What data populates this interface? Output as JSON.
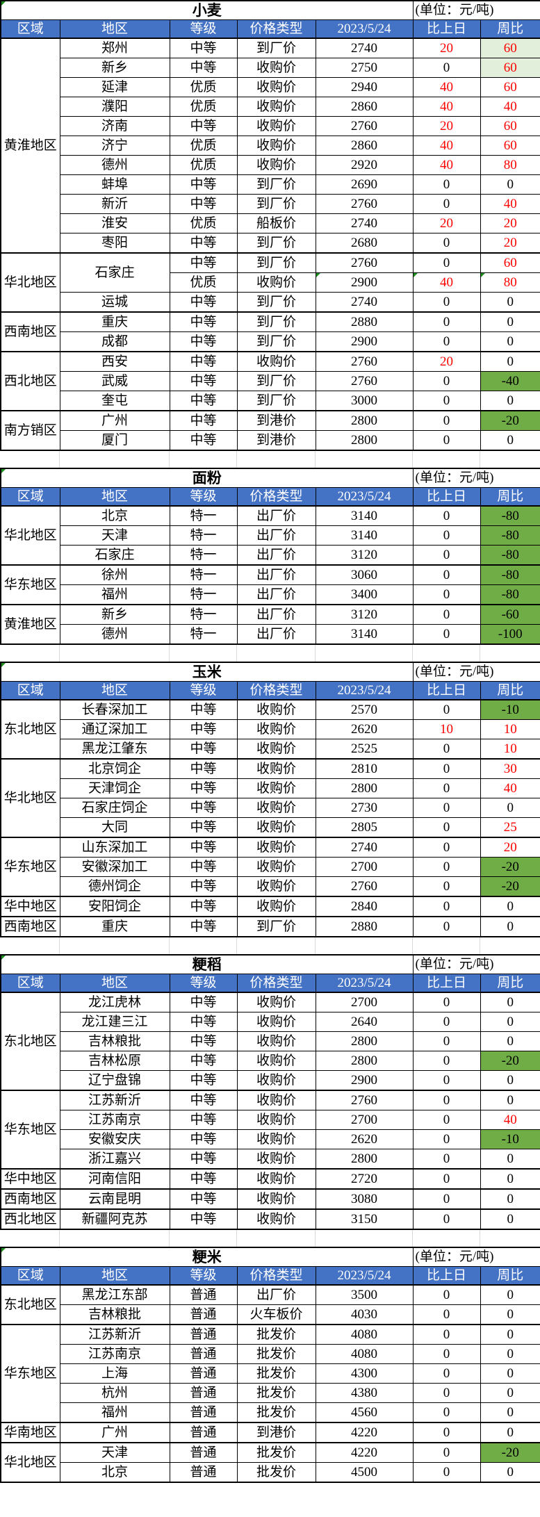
{
  "unit_label": "(单位：元/吨)",
  "columns": [
    "区域",
    "地区",
    "等级",
    "价格类型",
    "2023/5/24",
    "比上日",
    "周比"
  ],
  "colors": {
    "header_bg": "#4472C4",
    "pos_text": "#FF0000",
    "neg_bg": "#70AD47",
    "hl_bg": "#E2EFDA",
    "marker": "#1E8F1E"
  },
  "tables": [
    {
      "name": "wheat",
      "title": "小麦",
      "groups": [
        {
          "region": "黄淮地区",
          "rows": [
            {
              "area": "郑州",
              "grade": "中等",
              "ptype": "到厂价",
              "price": 2740,
              "dod": 20,
              "wow": 60,
              "hl": true
            },
            {
              "area": "新乡",
              "grade": "中等",
              "ptype": "收购价",
              "price": 2750,
              "dod": 0,
              "wow": 60,
              "hl": true
            },
            {
              "area": "延津",
              "grade": "优质",
              "ptype": "收购价",
              "price": 2940,
              "dod": 40,
              "wow": 60
            },
            {
              "area": "濮阳",
              "grade": "优质",
              "ptype": "收购价",
              "price": 2860,
              "dod": 40,
              "wow": 40
            },
            {
              "area": "济南",
              "grade": "中等",
              "ptype": "收购价",
              "price": 2760,
              "dod": 20,
              "wow": 60
            },
            {
              "area": "济宁",
              "grade": "优质",
              "ptype": "收购价",
              "price": 2860,
              "dod": 40,
              "wow": 60
            },
            {
              "area": "德州",
              "grade": "优质",
              "ptype": "收购价",
              "price": 2920,
              "dod": 40,
              "wow": 80
            },
            {
              "area": "蚌埠",
              "grade": "中等",
              "ptype": "到厂价",
              "price": 2690,
              "dod": 0,
              "wow": 0
            },
            {
              "area": "新沂",
              "grade": "中等",
              "ptype": "到厂价",
              "price": 2760,
              "dod": 0,
              "wow": 40
            },
            {
              "area": "淮安",
              "grade": "优质",
              "ptype": "船板价",
              "price": 2740,
              "dod": 20,
              "wow": 20
            },
            {
              "area": "枣阳",
              "grade": "中等",
              "ptype": "到厂价",
              "price": 2680,
              "dod": 0,
              "wow": 20
            }
          ]
        },
        {
          "region": "华北地区",
          "rows": [
            {
              "area": "石家庄",
              "area_span": 2,
              "grade": "中等",
              "ptype": "到厂价",
              "price": 2760,
              "dod": 0,
              "wow": 60
            },
            {
              "area": null,
              "grade": "优质",
              "ptype": "收购价",
              "price": 2900,
              "dod": 40,
              "wow": 80,
              "markers": true
            },
            {
              "area": "运城",
              "grade": "中等",
              "ptype": "到厂价",
              "price": 2740,
              "dod": 0,
              "wow": 0
            }
          ]
        },
        {
          "region": "西南地区",
          "rows": [
            {
              "area": "重庆",
              "grade": "中等",
              "ptype": "到厂价",
              "price": 2880,
              "dod": 0,
              "wow": 0
            },
            {
              "area": "成都",
              "grade": "中等",
              "ptype": "到厂价",
              "price": 2900,
              "dod": 0,
              "wow": 0
            }
          ]
        },
        {
          "region": "西北地区",
          "rows": [
            {
              "area": "西安",
              "grade": "中等",
              "ptype": "收购价",
              "price": 2760,
              "dod": 20,
              "wow": 0
            },
            {
              "area": "武威",
              "grade": "中等",
              "ptype": "到厂价",
              "price": 2760,
              "dod": 0,
              "wow": -40
            },
            {
              "area": "奎屯",
              "grade": "中等",
              "ptype": "到厂价",
              "price": 3000,
              "dod": 0,
              "wow": 0
            }
          ]
        },
        {
          "region": "南方销区",
          "rows": [
            {
              "area": "广州",
              "grade": "中等",
              "ptype": "到港价",
              "price": 2800,
              "dod": 0,
              "wow": -20
            },
            {
              "area": "厦门",
              "grade": "中等",
              "ptype": "到港价",
              "price": 2800,
              "dod": 0,
              "wow": 0
            }
          ]
        }
      ]
    },
    {
      "name": "flour",
      "title": "面粉",
      "groups": [
        {
          "region": "华北地区",
          "rows": [
            {
              "area": "北京",
              "grade": "特一",
              "ptype": "出厂价",
              "price": 3140,
              "dod": 0,
              "wow": -80
            },
            {
              "area": "天津",
              "grade": "特一",
              "ptype": "出厂价",
              "price": 3140,
              "dod": 0,
              "wow": -80
            },
            {
              "area": "石家庄",
              "grade": "特一",
              "ptype": "出厂价",
              "price": 3120,
              "dod": 0,
              "wow": -80
            }
          ]
        },
        {
          "region": "华东地区",
          "rows": [
            {
              "area": "徐州",
              "grade": "特一",
              "ptype": "出厂价",
              "price": 3060,
              "dod": 0,
              "wow": -80
            },
            {
              "area": "福州",
              "grade": "特一",
              "ptype": "出厂价",
              "price": 3400,
              "dod": 0,
              "wow": -80
            }
          ]
        },
        {
          "region": "黄淮地区",
          "rows": [
            {
              "area": "新乡",
              "grade": "特一",
              "ptype": "出厂价",
              "price": 3120,
              "dod": 0,
              "wow": -60
            },
            {
              "area": "德州",
              "grade": "特一",
              "ptype": "出厂价",
              "price": 3140,
              "dod": 0,
              "wow": -100
            }
          ]
        }
      ]
    },
    {
      "name": "corn",
      "title": "玉米",
      "groups": [
        {
          "region": "东北地区",
          "rows": [
            {
              "area": "长春深加工",
              "grade": "中等",
              "ptype": "收购价",
              "price": 2570,
              "dod": 0,
              "wow": -10
            },
            {
              "area": "通辽深加工",
              "grade": "中等",
              "ptype": "收购价",
              "price": 2620,
              "dod": 10,
              "wow": 10
            },
            {
              "area": "黑龙江肇东",
              "grade": "中等",
              "ptype": "收购价",
              "price": 2525,
              "dod": 0,
              "wow": 10
            }
          ]
        },
        {
          "region": "华北地区",
          "rows": [
            {
              "area": "北京饲企",
              "grade": "中等",
              "ptype": "收购价",
              "price": 2810,
              "dod": 0,
              "wow": 30
            },
            {
              "area": "天津饲企",
              "grade": "中等",
              "ptype": "收购价",
              "price": 2800,
              "dod": 0,
              "wow": 40
            },
            {
              "area": "石家庄饲企",
              "grade": "中等",
              "ptype": "收购价",
              "price": 2730,
              "dod": 0,
              "wow": 0
            },
            {
              "area": "大同",
              "grade": "中等",
              "ptype": "收购价",
              "price": 2805,
              "dod": 0,
              "wow": 25
            }
          ]
        },
        {
          "region": "华东地区",
          "rows": [
            {
              "area": "山东深加工",
              "grade": "中等",
              "ptype": "收购价",
              "price": 2740,
              "dod": 0,
              "wow": 20
            },
            {
              "area": "安徽深加工",
              "grade": "中等",
              "ptype": "收购价",
              "price": 2700,
              "dod": 0,
              "wow": -20
            },
            {
              "area": "德州饲企",
              "grade": "中等",
              "ptype": "收购价",
              "price": 2760,
              "dod": 0,
              "wow": -20
            }
          ]
        },
        {
          "region": "华中地区",
          "rows": [
            {
              "area": "安阳饲企",
              "grade": "中等",
              "ptype": "收购价",
              "price": 2840,
              "dod": 0,
              "wow": 0
            }
          ]
        },
        {
          "region": "西南地区",
          "rows": [
            {
              "area": "重庆",
              "grade": "中等",
              "ptype": "到厂价",
              "price": 2880,
              "dod": 0,
              "wow": 0
            }
          ]
        }
      ]
    },
    {
      "name": "japonica-paddy",
      "title": "粳稻",
      "groups": [
        {
          "region": "东北地区",
          "rows": [
            {
              "area": "龙江虎林",
              "grade": "中等",
              "ptype": "收购价",
              "price": 2700,
              "dod": 0,
              "wow": 0
            },
            {
              "area": "龙江建三江",
              "grade": "中等",
              "ptype": "收购价",
              "price": 2640,
              "dod": 0,
              "wow": 0
            },
            {
              "area": "吉林粮批",
              "grade": "中等",
              "ptype": "收购价",
              "price": 2800,
              "dod": 0,
              "wow": 0
            },
            {
              "area": "吉林松原",
              "grade": "中等",
              "ptype": "收购价",
              "price": 2800,
              "dod": 0,
              "wow": -20
            },
            {
              "area": "辽宁盘锦",
              "grade": "中等",
              "ptype": "收购价",
              "price": 2900,
              "dod": 0,
              "wow": 0
            }
          ]
        },
        {
          "region": "华东地区",
          "rows": [
            {
              "area": "江苏新沂",
              "grade": "中等",
              "ptype": "收购价",
              "price": 2760,
              "dod": 0,
              "wow": 0
            },
            {
              "area": "江苏南京",
              "grade": "中等",
              "ptype": "收购价",
              "price": 2700,
              "dod": 0,
              "wow": 40
            },
            {
              "area": "安徽安庆",
              "grade": "中等",
              "ptype": "收购价",
              "price": 2620,
              "dod": 0,
              "wow": -10
            },
            {
              "area": "浙江嘉兴",
              "grade": "中等",
              "ptype": "收购价",
              "price": 2800,
              "dod": 0,
              "wow": 0
            }
          ]
        },
        {
          "region": "华中地区",
          "rows": [
            {
              "area": "河南信阳",
              "grade": "中等",
              "ptype": "收购价",
              "price": 2720,
              "dod": 0,
              "wow": 0
            }
          ]
        },
        {
          "region": "西南地区",
          "rows": [
            {
              "area": "云南昆明",
              "grade": "中等",
              "ptype": "收购价",
              "price": 3080,
              "dod": 0,
              "wow": 0
            }
          ]
        },
        {
          "region": "西北地区",
          "rows": [
            {
              "area": "新疆阿克苏",
              "grade": "中等",
              "ptype": "收购价",
              "price": 3150,
              "dod": 0,
              "wow": 0
            }
          ]
        }
      ]
    },
    {
      "name": "japonica-rice",
      "title": "粳米",
      "groups": [
        {
          "region": "东北地区",
          "rows": [
            {
              "area": "黑龙江东部",
              "grade": "普通",
              "ptype": "出厂价",
              "price": 3500,
              "dod": 0,
              "wow": 0
            },
            {
              "area": "吉林粮批",
              "grade": "普通",
              "ptype": "火车板价",
              "price": 4030,
              "dod": 0,
              "wow": 0
            }
          ]
        },
        {
          "region": "华东地区",
          "rows": [
            {
              "area": "江苏新沂",
              "grade": "普通",
              "ptype": "批发价",
              "price": 4080,
              "dod": 0,
              "wow": 0
            },
            {
              "area": "江苏南京",
              "grade": "普通",
              "ptype": "批发价",
              "price": 4080,
              "dod": 0,
              "wow": 0
            },
            {
              "area": "上海",
              "grade": "普通",
              "ptype": "批发价",
              "price": 4300,
              "dod": 0,
              "wow": 0
            },
            {
              "area": "杭州",
              "grade": "普通",
              "ptype": "批发价",
              "price": 4380,
              "dod": 0,
              "wow": 0
            },
            {
              "area": "福州",
              "grade": "普通",
              "ptype": "批发价",
              "price": 4560,
              "dod": 0,
              "wow": 0
            }
          ]
        },
        {
          "region": "华南地区",
          "rows": [
            {
              "area": "广州",
              "grade": "普通",
              "ptype": "到港价",
              "price": 4220,
              "dod": 0,
              "wow": 0
            }
          ]
        },
        {
          "region": "华北地区",
          "rows": [
            {
              "area": "天津",
              "grade": "普通",
              "ptype": "批发价",
              "price": 4220,
              "dod": 0,
              "wow": -20
            },
            {
              "area": "北京",
              "grade": "普通",
              "ptype": "批发价",
              "price": 4500,
              "dod": 0,
              "wow": 0
            }
          ]
        }
      ]
    }
  ]
}
